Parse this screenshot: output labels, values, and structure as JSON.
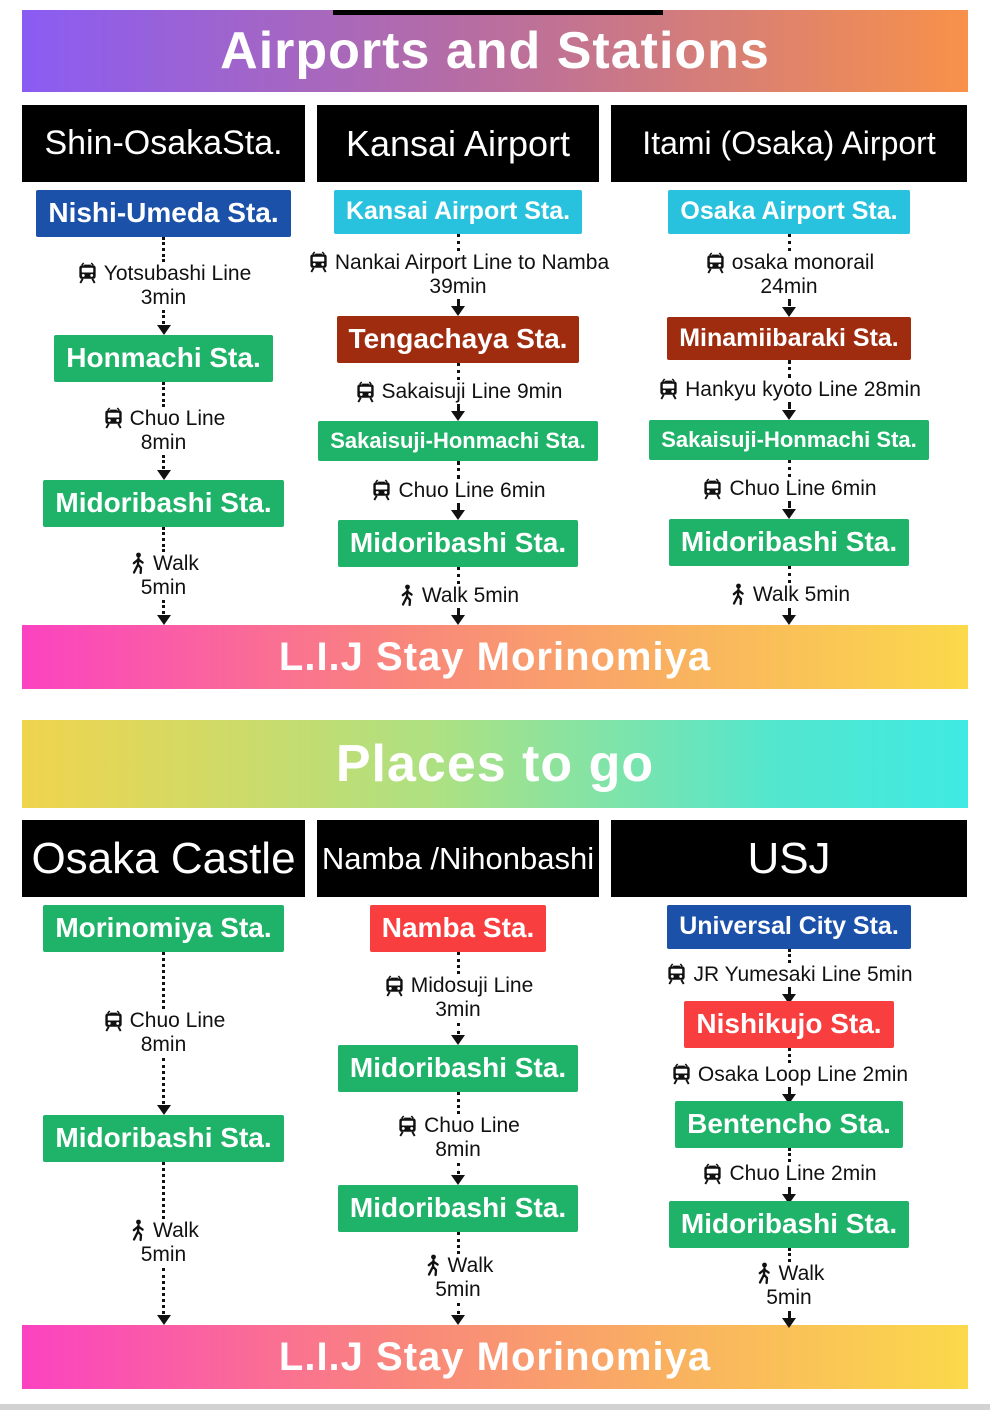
{
  "colors": {
    "badge_blue": "#1b51a9",
    "badge_cyan": "#29c2de",
    "badge_green": "#1fb269",
    "badge_red": "#f83e3e",
    "badge_darkred": "#a02c10",
    "header_black": "#000000",
    "banner_airports_gradient": [
      "#8a5cf3",
      "#b96e9e",
      "#f8914a"
    ],
    "banner_places_gradient": [
      "#f0d44d",
      "#abe184",
      "#3feae3"
    ],
    "banner_hotel_gradient": [
      "#fb42c1",
      "#f9867c",
      "#fbd94b"
    ]
  },
  "sections": [
    {
      "banner": {
        "label": "Airports and Stations"
      },
      "columns": [
        {
          "header": "Shin-OsakaSta.",
          "steps": [
            {
              "type": "station",
              "label": "Nishi-Umeda Sta.",
              "color": "badge_blue"
            },
            {
              "type": "transit",
              "icon": "train",
              "text": "Yotsubashi Line",
              "sub": "3min"
            },
            {
              "type": "station",
              "label": "Honmachi Sta.",
              "color": "badge_green"
            },
            {
              "type": "transit",
              "icon": "train",
              "text": "Chuo Line",
              "sub": "8min"
            },
            {
              "type": "station",
              "label": "Midoribashi Sta.",
              "color": "badge_green"
            },
            {
              "type": "transit",
              "icon": "walk",
              "text": "Walk",
              "sub": "5min"
            }
          ]
        },
        {
          "header": "Kansai Airport",
          "steps": [
            {
              "type": "station",
              "label": "Kansai Airport Sta.",
              "color": "badge_cyan"
            },
            {
              "type": "transit",
              "icon": "train",
              "text": "Nankai Airport Line to Namba",
              "sub": "39min"
            },
            {
              "type": "station",
              "label": "Tengachaya Sta.",
              "color": "badge_darkred"
            },
            {
              "type": "transit",
              "icon": "train",
              "text": "Sakaisuji Line 9min"
            },
            {
              "type": "station",
              "label": "Sakaisuji-Honmachi Sta.",
              "color": "badge_green"
            },
            {
              "type": "transit",
              "icon": "train",
              "text": "Chuo Line 6min"
            },
            {
              "type": "station",
              "label": "Midoribashi Sta.",
              "color": "badge_green"
            },
            {
              "type": "transit",
              "icon": "walk",
              "text": "Walk 5min"
            }
          ]
        },
        {
          "header": "Itami (Osaka) Airport",
          "steps": [
            {
              "type": "station",
              "label": "Osaka Airport Sta.",
              "color": "badge_cyan"
            },
            {
              "type": "transit",
              "icon": "train",
              "text": "osaka monorail",
              "sub": "24min"
            },
            {
              "type": "station",
              "label": "Minamiibaraki Sta.",
              "color": "badge_darkred"
            },
            {
              "type": "transit",
              "icon": "train",
              "text": "Hankyu kyoto Line 28min"
            },
            {
              "type": "station",
              "label": "Sakaisuji-Honmachi Sta.",
              "color": "badge_green"
            },
            {
              "type": "transit",
              "icon": "train",
              "text": "Chuo Line 6min"
            },
            {
              "type": "station",
              "label": "Midoribashi Sta.",
              "color": "badge_green"
            },
            {
              "type": "transit",
              "icon": "walk",
              "text": "Walk 5min"
            }
          ]
        }
      ],
      "footer_banner": {
        "label": "L.I.J Stay Morinomiya"
      }
    },
    {
      "banner": {
        "label": "Places to go"
      },
      "columns": [
        {
          "header": "Osaka Castle",
          "steps": [
            {
              "type": "station",
              "label": "Morinomiya Sta.",
              "color": "badge_green"
            },
            {
              "type": "transit",
              "icon": "train",
              "text": "Chuo Line",
              "sub": "8min"
            },
            {
              "type": "station",
              "label": "Midoribashi Sta.",
              "color": "badge_green"
            },
            {
              "type": "transit",
              "icon": "walk",
              "text": "Walk",
              "sub": "5min"
            }
          ]
        },
        {
          "header": "Namba /Nihonbashi",
          "steps": [
            {
              "type": "station",
              "label": "Namba Sta.",
              "color": "badge_red"
            },
            {
              "type": "transit",
              "icon": "train",
              "text": "Midosuji Line",
              "sub": "3min"
            },
            {
              "type": "station",
              "label": "Midoribashi Sta.",
              "color": "badge_green"
            },
            {
              "type": "transit",
              "icon": "train",
              "text": "Chuo Line",
              "sub": "8min"
            },
            {
              "type": "station",
              "label": "Midoribashi Sta.",
              "color": "badge_green"
            },
            {
              "type": "transit",
              "icon": "walk",
              "text": "Walk",
              "sub": "5min"
            }
          ]
        },
        {
          "header": "USJ",
          "steps": [
            {
              "type": "station",
              "label": "Universal City Sta.",
              "color": "badge_blue"
            },
            {
              "type": "transit",
              "icon": "train",
              "text": "JR Yumesaki Line 5min"
            },
            {
              "type": "station",
              "label": "Nishikujo Sta.",
              "color": "badge_red"
            },
            {
              "type": "transit",
              "icon": "train",
              "text": "Osaka Loop Line 2min"
            },
            {
              "type": "station",
              "label": "Bentencho Sta.",
              "color": "badge_green"
            },
            {
              "type": "transit",
              "icon": "train",
              "text": "Chuo Line 2min"
            },
            {
              "type": "station",
              "label": "Midoribashi Sta.",
              "color": "badge_green"
            },
            {
              "type": "transit",
              "icon": "walk",
              "text": "Walk",
              "sub": "5min"
            }
          ]
        }
      ],
      "footer_banner": {
        "label": "L.I.J Stay Morinomiya"
      }
    }
  ]
}
